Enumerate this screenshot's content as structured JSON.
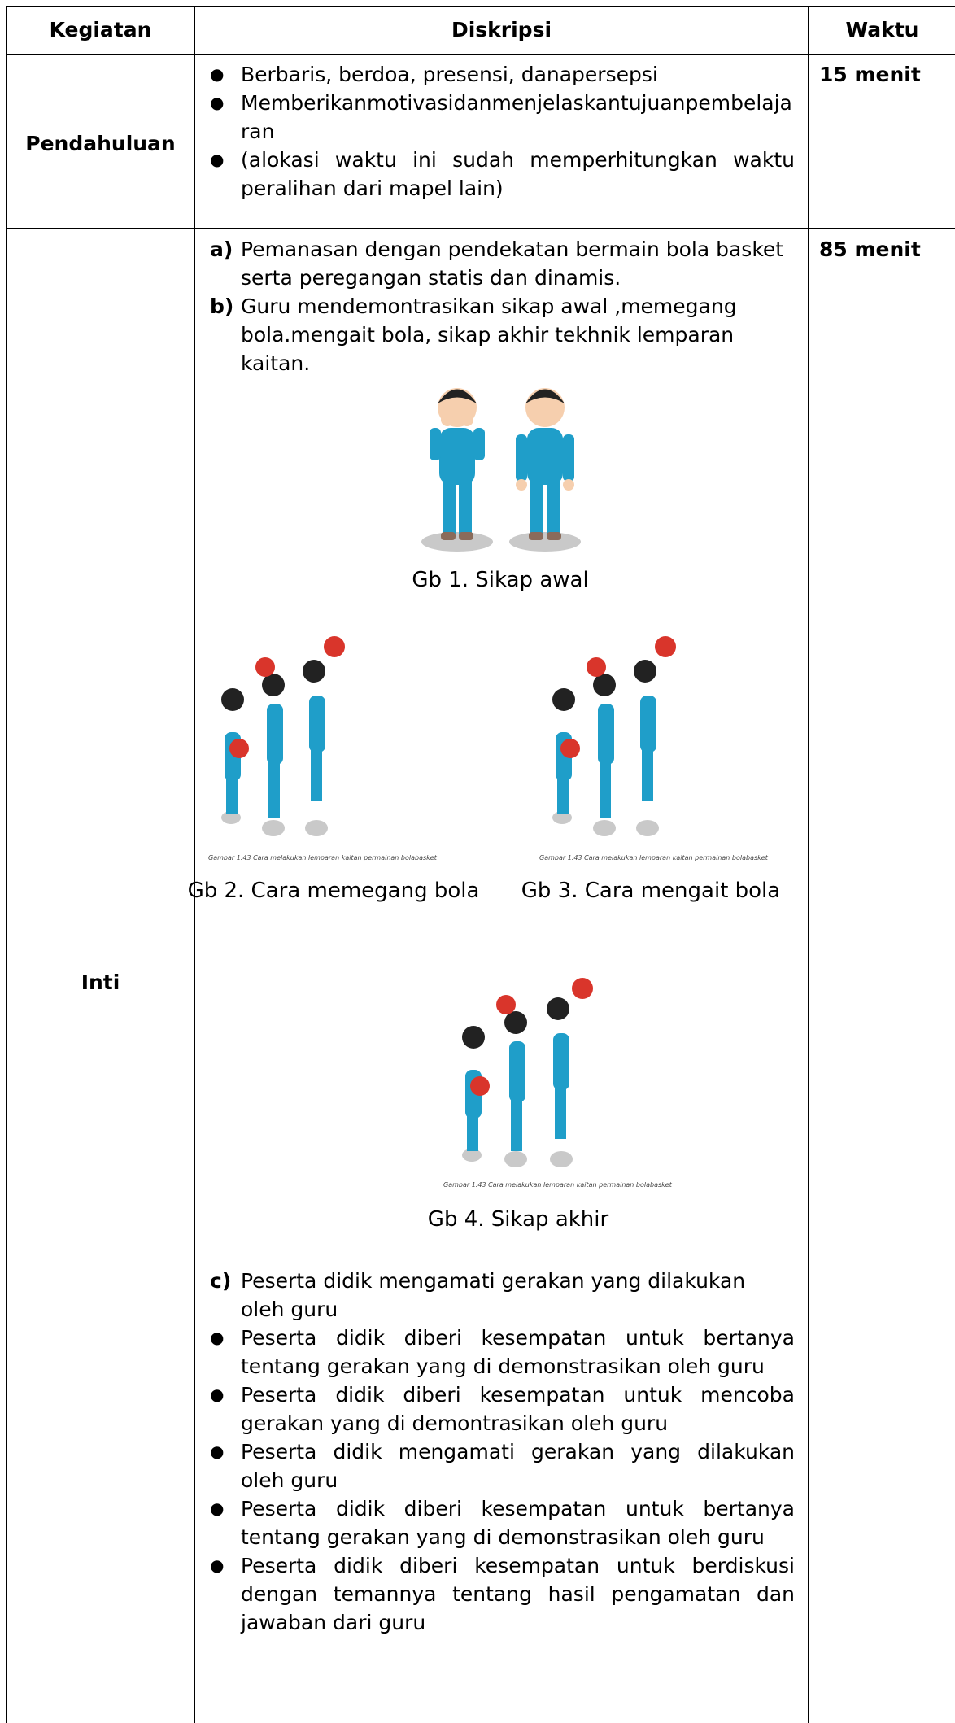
{
  "table": {
    "headers": [
      "Kegiatan",
      "Diskripsi",
      "Waktu"
    ],
    "rows": [
      {
        "kegiatan": "Pendahuluan",
        "waktu": "15 menit",
        "items": [
          "Berbaris, berdoa, presensi, danapersepsi",
          "Memberikanmotivasidanmenjelaskantujuanpembelajaran",
          "(alokasi waktu ini sudah memperhitungkan waktu peralihan dari mapel lain)"
        ]
      },
      {
        "kegiatan": "Inti",
        "waktu": "85 menit",
        "steps": [
          {
            "marker": "a)",
            "text": "Pemanasan dengan pendekatan bermain bola basket serta peregangan statis dan dinamis."
          },
          {
            "marker": "b)",
            "text": "Guru mendemontrasikan  sikap awal ,memegang bola.mengait bola, sikap akhir tekhnik lemparan kaitan."
          }
        ],
        "figures": [
          {
            "caption": "Gb 1. Sikap awal"
          },
          {
            "caption": "Gb 2. Cara memegang bola",
            "inner_caption": "Gambar 1.43 Cara melakukan lemparan kaitan permainan bolabasket"
          },
          {
            "caption": "Gb 3. Cara mengait bola",
            "inner_caption": "Gambar 1.43 Cara melakukan lemparan kaitan permainan bolabasket"
          },
          {
            "caption": "Gb 4. Sikap akhir",
            "inner_caption": "Gambar 1.43 Cara melakukan lemparan kaitan permainan bolabasket"
          }
        ],
        "step_c": {
          "marker": "c)",
          "text": "Peserta didik mengamati gerakan yang dilakukan oleh guru"
        },
        "bullets": [
          "Peserta didik diberi kesempatan untuk bertanya tentang gerakan yang di demonstrasikan oleh guru",
          "Peserta didik diberi kesempatan untuk mencoba gerakan yang di demontrasikan oleh guru",
          "Peserta didik mengamati gerakan yang dilakukan oleh guru",
          "Peserta didik diberi kesempatan untuk bertanya tentang gerakan yang di demonstrasikan oleh guru",
          "Peserta didik diberi kesempatan untuk berdiskusi dengan temannya tentang hasil pengamatan dan jawaban dari guru"
        ]
      }
    ]
  }
}
